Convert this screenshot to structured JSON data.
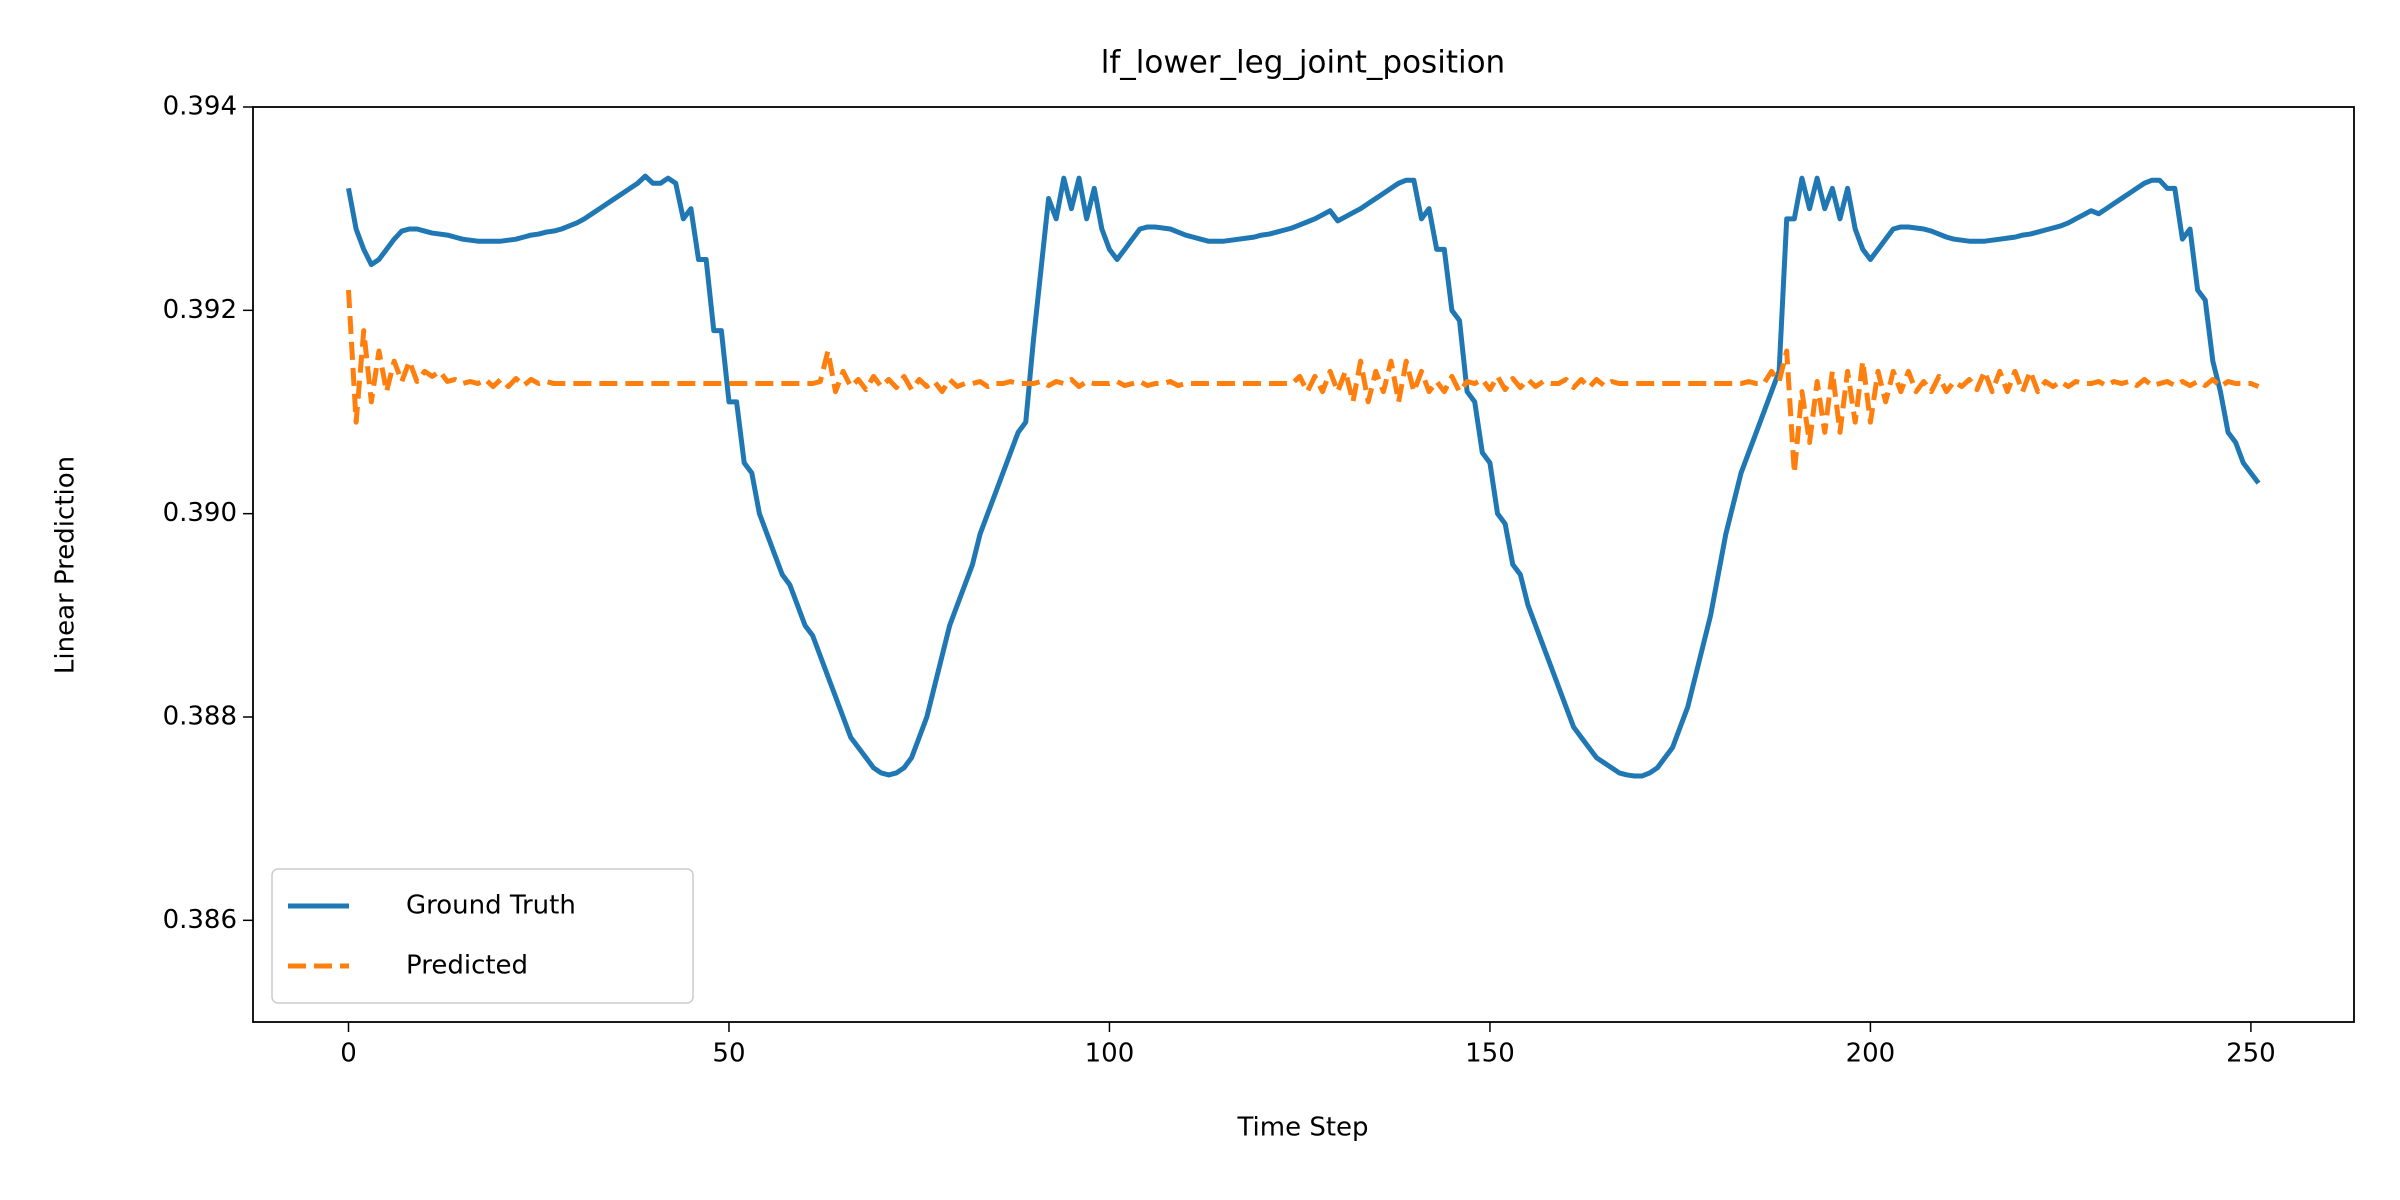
{
  "chart_data": {
    "type": "line",
    "title": "lf_lower_leg_joint_position",
    "x_label": "Time Step",
    "y_label": "Linear Prediction",
    "xlim": [
      -12.55,
      263.55
    ],
    "xticks": [
      0,
      50,
      100,
      150,
      200,
      250
    ],
    "ylim": [
      0.385,
      0.394
    ],
    "yticks": [
      0.386,
      0.388,
      {
        "value": 0.39,
        "label": "0.390"
      },
      0.392,
      0.394
    ],
    "grid": false,
    "legend": "lower left",
    "series": [
      {
        "name": "Ground Truth",
        "color": "#1f77b4",
        "linestyle": "solid",
        "values": [
          0.3932,
          0.3928,
          0.3926,
          0.39245,
          0.3925,
          0.3926,
          0.3927,
          0.39278,
          0.3928,
          0.3928,
          0.39278,
          0.39276,
          0.39275,
          0.39274,
          0.39272,
          0.3927,
          0.39269,
          0.39268,
          0.39268,
          0.39268,
          0.39268,
          0.39269,
          0.3927,
          0.39272,
          0.39274,
          0.39275,
          0.39277,
          0.39278,
          0.3928,
          0.39283,
          0.39286,
          0.3929,
          0.39295,
          0.393,
          0.39305,
          0.3931,
          0.39315,
          0.3932,
          0.39325,
          0.39332,
          0.39325,
          0.39325,
          0.3933,
          0.39325,
          0.3929,
          0.393,
          0.3925,
          0.3925,
          0.3918,
          0.3918,
          0.3911,
          0.3911,
          0.3905,
          0.3904,
          0.39,
          0.3898,
          0.3896,
          0.3894,
          0.3893,
          0.3891,
          0.3889,
          0.3888,
          0.3886,
          0.3884,
          0.3882,
          0.388,
          0.3878,
          0.3877,
          0.3876,
          0.3875,
          0.38745,
          0.38743,
          0.38745,
          0.3875,
          0.3876,
          0.3878,
          0.388,
          0.3883,
          0.3886,
          0.3889,
          0.3891,
          0.3893,
          0.3895,
          0.3898,
          0.39,
          0.3902,
          0.3904,
          0.3906,
          0.3908,
          0.3909,
          0.3917,
          0.3924,
          0.3931,
          0.3929,
          0.3933,
          0.393,
          0.3933,
          0.3929,
          0.3932,
          0.3928,
          0.3926,
          0.3925,
          0.3926,
          0.3927,
          0.3928,
          0.39282,
          0.39282,
          0.39281,
          0.3928,
          0.39277,
          0.39274,
          0.39272,
          0.3927,
          0.39268,
          0.39268,
          0.39268,
          0.39269,
          0.3927,
          0.39271,
          0.39272,
          0.39274,
          0.39275,
          0.39277,
          0.39279,
          0.39281,
          0.39284,
          0.39287,
          0.3929,
          0.39294,
          0.39298,
          0.39288,
          0.39292,
          0.39296,
          0.393,
          0.39305,
          0.3931,
          0.39315,
          0.3932,
          0.39325,
          0.39328,
          0.39328,
          0.3929,
          0.393,
          0.3926,
          0.3926,
          0.392,
          0.3919,
          0.3912,
          0.3911,
          0.3906,
          0.3905,
          0.39,
          0.3899,
          0.3895,
          0.3894,
          0.3891,
          0.3889,
          0.3887,
          0.3885,
          0.3883,
          0.3881,
          0.3879,
          0.3878,
          0.3877,
          0.3876,
          0.38755,
          0.3875,
          0.38745,
          0.38743,
          0.38742,
          0.38742,
          0.38745,
          0.3875,
          0.3876,
          0.3877,
          0.3879,
          0.3881,
          0.3884,
          0.3887,
          0.389,
          0.3894,
          0.3898,
          0.3901,
          0.3904,
          0.3906,
          0.3908,
          0.391,
          0.3912,
          0.3914,
          0.3929,
          0.3929,
          0.3933,
          0.393,
          0.3933,
          0.393,
          0.3932,
          0.3929,
          0.3932,
          0.3928,
          0.3926,
          0.3925,
          0.3926,
          0.3927,
          0.3928,
          0.39282,
          0.39282,
          0.39281,
          0.3928,
          0.39278,
          0.39275,
          0.39272,
          0.3927,
          0.39269,
          0.39268,
          0.39268,
          0.39268,
          0.39269,
          0.3927,
          0.39271,
          0.39272,
          0.39274,
          0.39275,
          0.39277,
          0.39279,
          0.39281,
          0.39283,
          0.39286,
          0.3929,
          0.39294,
          0.39298,
          0.39295,
          0.393,
          0.39305,
          0.3931,
          0.39315,
          0.3932,
          0.39325,
          0.39328,
          0.39328,
          0.3932,
          0.3932,
          0.3927,
          0.3928,
          0.3922,
          0.3921,
          0.3915,
          0.3912,
          0.3908,
          0.3907,
          0.3905,
          0.3904,
          0.3903
        ]
      },
      {
        "name": "Predicted",
        "color": "#ff7f0e",
        "linestyle": "dashed",
        "values": [
          0.3922,
          0.3909,
          0.3918,
          0.3911,
          0.3916,
          0.3912,
          0.3915,
          0.3913,
          0.3915,
          0.3913,
          0.3914,
          0.39135,
          0.3914,
          0.3913,
          0.39132,
          0.39128,
          0.3913,
          0.39128,
          0.39132,
          0.39125,
          0.39132,
          0.39125,
          0.39133,
          0.39126,
          0.39132,
          0.39128,
          0.3913,
          0.39128,
          0.39128,
          0.39128,
          0.39128,
          0.39128,
          0.39128,
          0.39128,
          0.39128,
          0.39128,
          0.39128,
          0.39128,
          0.39128,
          0.39128,
          0.39128,
          0.39128,
          0.39128,
          0.39128,
          0.39128,
          0.39128,
          0.39128,
          0.39128,
          0.39128,
          0.39128,
          0.39128,
          0.39128,
          0.39128,
          0.39128,
          0.39128,
          0.39128,
          0.39128,
          0.39128,
          0.39128,
          0.39128,
          0.39128,
          0.39128,
          0.3913,
          0.3916,
          0.3912,
          0.3914,
          0.39125,
          0.39132,
          0.39122,
          0.39135,
          0.39125,
          0.39132,
          0.39124,
          0.39135,
          0.39122,
          0.39132,
          0.39125,
          0.3913,
          0.3912,
          0.39132,
          0.39125,
          0.39128,
          0.39128,
          0.3913,
          0.39125,
          0.39128,
          0.39128,
          0.3913,
          0.39128,
          0.39128,
          0.39128,
          0.3913,
          0.39126,
          0.3913,
          0.39128,
          0.39132,
          0.39125,
          0.3913,
          0.39128,
          0.39128,
          0.39128,
          0.3913,
          0.39126,
          0.39128,
          0.3913,
          0.39126,
          0.39128,
          0.39128,
          0.3913,
          0.39126,
          0.39128,
          0.39128,
          0.39128,
          0.39128,
          0.39128,
          0.39128,
          0.39128,
          0.39128,
          0.39128,
          0.39128,
          0.39128,
          0.39128,
          0.39128,
          0.39128,
          0.39128,
          0.39135,
          0.3912,
          0.39135,
          0.3912,
          0.3914,
          0.3912,
          0.3914,
          0.3911,
          0.3915,
          0.3911,
          0.3914,
          0.3912,
          0.3915,
          0.3911,
          0.3915,
          0.3912,
          0.3914,
          0.3912,
          0.3913,
          0.3912,
          0.39135,
          0.3912,
          0.3913,
          0.39128,
          0.39132,
          0.39122,
          0.39135,
          0.39122,
          0.39133,
          0.39124,
          0.39132,
          0.39125,
          0.3913,
          0.39128,
          0.39128,
          0.39132,
          0.39124,
          0.39132,
          0.39124,
          0.39132,
          0.39126,
          0.3913,
          0.39128,
          0.39128,
          0.39128,
          0.39128,
          0.39128,
          0.39128,
          0.39128,
          0.39128,
          0.39128,
          0.39128,
          0.39128,
          0.39128,
          0.39128,
          0.39128,
          0.39128,
          0.39128,
          0.39128,
          0.3913,
          0.39128,
          0.39128,
          0.3914,
          0.3913,
          0.3916,
          0.3904,
          0.3912,
          0.3907,
          0.3913,
          0.3908,
          0.3914,
          0.3908,
          0.3914,
          0.3909,
          0.3915,
          0.3909,
          0.3914,
          0.3911,
          0.3914,
          0.3912,
          0.3914,
          0.3912,
          0.3913,
          0.3912,
          0.39135,
          0.3912,
          0.3913,
          0.39125,
          0.39132,
          0.39122,
          0.3914,
          0.3912,
          0.3914,
          0.3912,
          0.3914,
          0.3912,
          0.3914,
          0.3912,
          0.3913,
          0.39125,
          0.3913,
          0.39125,
          0.3913,
          0.39128,
          0.39128,
          0.3913,
          0.39126,
          0.3913,
          0.39128,
          0.3913,
          0.39126,
          0.39132,
          0.39126,
          0.39128,
          0.3913,
          0.39126,
          0.3913,
          0.39126,
          0.3913,
          0.39126,
          0.39132,
          0.39125,
          0.3913,
          0.39128,
          0.39128,
          0.39128,
          0.39125
        ]
      }
    ]
  }
}
